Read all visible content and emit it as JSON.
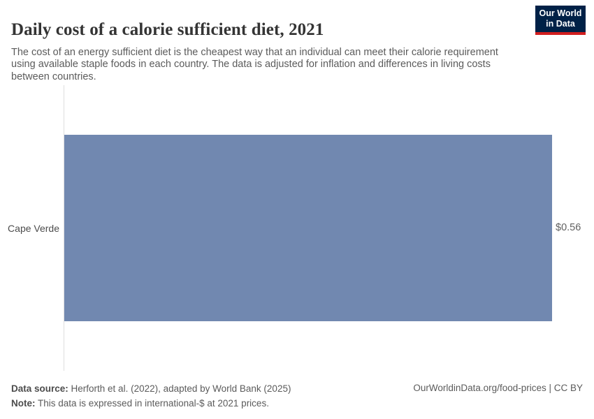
{
  "header": {
    "title": "Daily cost of a calorie sufficient diet, 2021",
    "subtitle": "The cost of an energy sufficient diet is the cheapest way that an individual can meet their calorie requirement using available staple foods in each country. The data is adjusted for inflation and differences in living costs between countries."
  },
  "logo": {
    "line1": "Our World",
    "line2": "in Data",
    "bg_color": "#002147",
    "accent_color": "#d21e1f"
  },
  "chart_data": {
    "type": "bar",
    "orientation": "horizontal",
    "categories": [
      "Cape Verde"
    ],
    "values": [
      0.56
    ],
    "value_labels": [
      "$0.56"
    ],
    "title": "Daily cost of a calorie sufficient diet, 2021",
    "xlabel": "",
    "ylabel": "",
    "xlim": [
      0,
      0.56
    ],
    "unit": "international-$ at 2021 prices",
    "grid": false,
    "legend": false,
    "bar_color": "#7188b0",
    "axis_color": "#dedede"
  },
  "footer": {
    "data_source_label": "Data source:",
    "data_source_text": " Herforth et al. (2022), adapted by World Bank (2025)",
    "note_label": "Note:",
    "note_text": " This data is expressed in international-$ at 2021 prices.",
    "attribution": "OurWorldinData.org/food-prices | CC BY"
  }
}
